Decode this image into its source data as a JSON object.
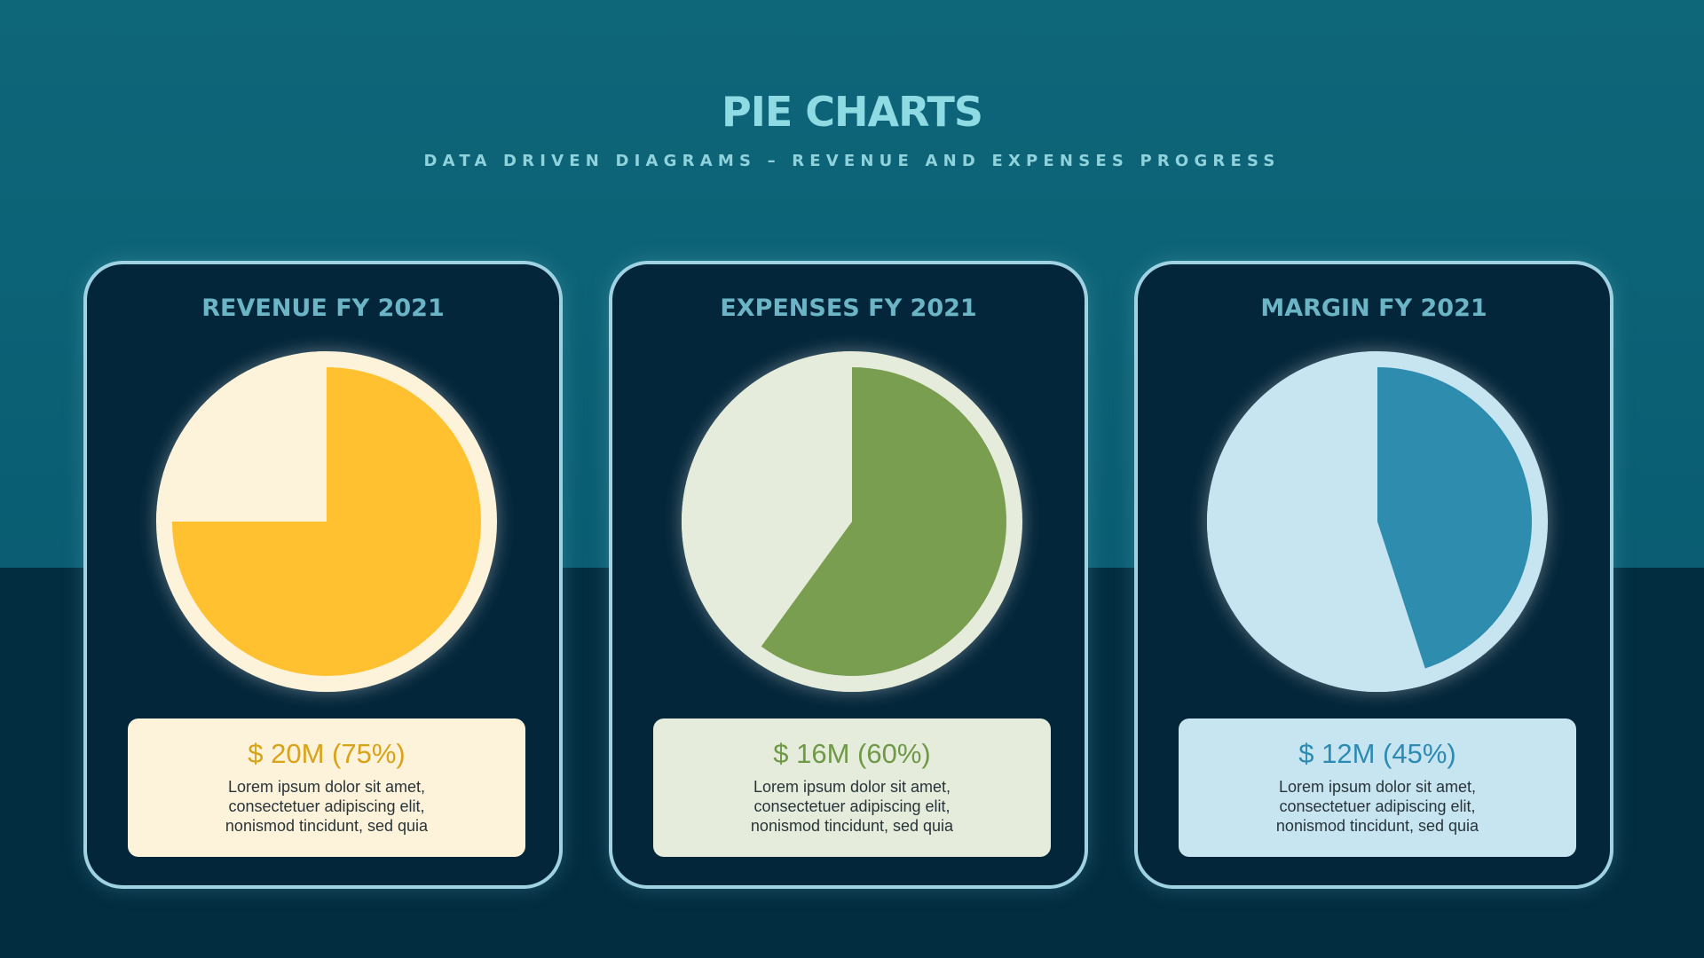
{
  "header": {
    "title": "PIE CHARTS",
    "subtitle": "DATA DRIVEN DIAGRAMS – REVENUE AND EXPENSES PROGRESS"
  },
  "colors": {
    "background_top": "#0e6679",
    "background_bottom": "#022c40",
    "card_fill": "#04263a",
    "card_border": "#9fd3e3",
    "title": "#8fdbe4",
    "card_title": "#6bb5c6"
  },
  "chart_data": [
    {
      "type": "pie",
      "title": "REVENUE FY 2021",
      "slices": [
        {
          "label": "$ 20M (75%)",
          "value": 75,
          "color": "#ffc12f"
        },
        {
          "label": "",
          "value": 25,
          "color": "#fdf2da"
        }
      ],
      "value_label": "$ 20M (75%)",
      "value_color": "#d9a318",
      "box_color": "#fdf2da",
      "ring_color": "#fdf2da",
      "description": "Lorem ipsum dolor sit amet, consectetuer adipiscing elit, nonismod tincidunt, sed quia"
    },
    {
      "type": "pie",
      "title": "EXPENSES FY 2021",
      "slices": [
        {
          "label": "$ 16M (60%)",
          "value": 60,
          "color": "#7a9e50"
        },
        {
          "label": "",
          "value": 40,
          "color": "#e5ecdc"
        }
      ],
      "value_label": "$ 16M (60%)",
      "value_color": "#6f9947",
      "box_color": "#e5ecdc",
      "ring_color": "#e5ecdc",
      "description": "Lorem ipsum dolor sit amet, consectetuer adipiscing elit, nonismod tincidunt, sed quia"
    },
    {
      "type": "pie",
      "title": "MARGIN FY 2021",
      "slices": [
        {
          "label": "$ 12M (45%)",
          "value": 45,
          "color": "#2e8caf"
        },
        {
          "label": "",
          "value": 55,
          "color": "#c7e5f0"
        }
      ],
      "value_label": "$ 12M (45%)",
      "value_color": "#2d8bb3",
      "box_color": "#c7e5f0",
      "ring_color": "#c7e5f0",
      "description": "Lorem ipsum dolor sit amet, consectetuer adipiscing elit, nonismod tincidunt, sed quia"
    }
  ]
}
